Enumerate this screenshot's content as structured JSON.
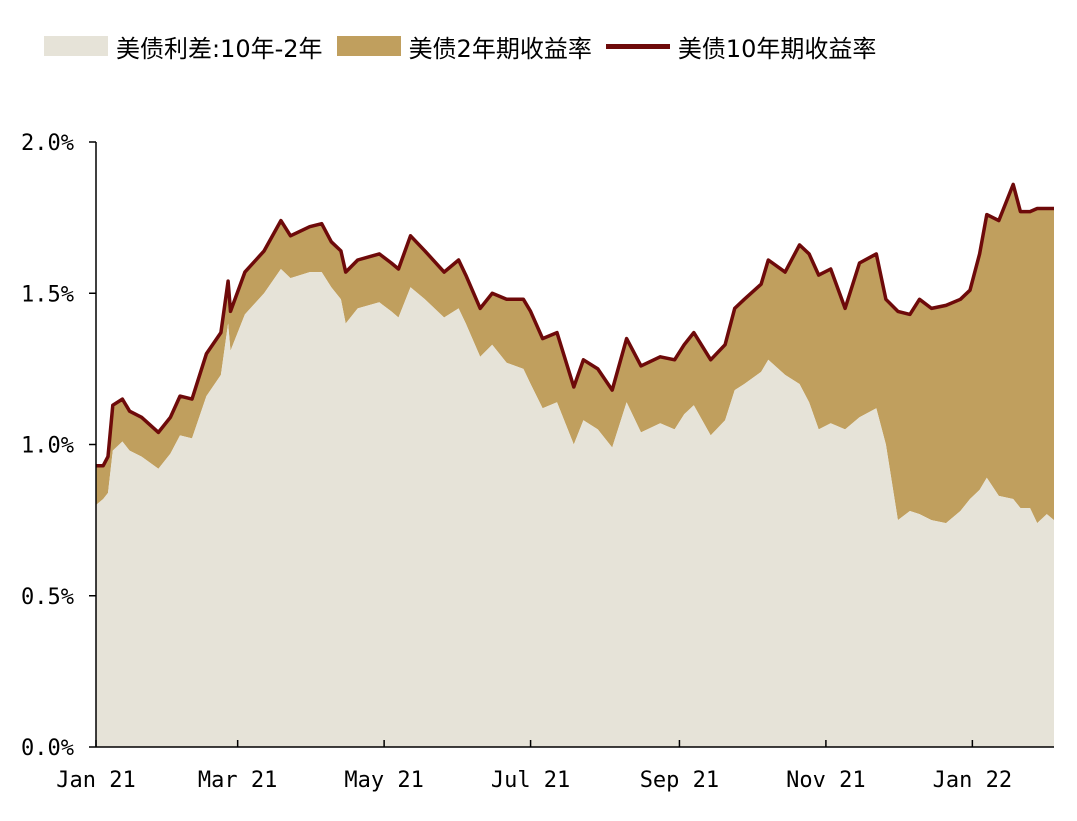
{
  "chart_data": {
    "type": "area",
    "legend": {
      "placement": "top-left",
      "items": [
        {
          "label": "美债利差:10年-2年",
          "kind": "area",
          "color": "#e6e3d8"
        },
        {
          "label": "美债2年期收益率",
          "kind": "area",
          "color": "#c09f5e"
        },
        {
          "label": "美债10年期收益率",
          "kind": "line",
          "color": "#6e0a0a"
        }
      ]
    },
    "y_axis": {
      "ticks": [
        {
          "value": 0.0,
          "label": "0.0%"
        },
        {
          "value": 0.5,
          "label": "0.5%"
        },
        {
          "value": 1.0,
          "label": "1.0%"
        },
        {
          "value": 1.5,
          "label": "1.5%"
        },
        {
          "value": 2.0,
          "label": "2.0%"
        }
      ],
      "range": [
        0,
        2.0
      ]
    },
    "x_axis": {
      "ticks": [
        {
          "value": "2021-01-01",
          "label": "Jan 21"
        },
        {
          "value": "2021-03-01",
          "label": "Mar 21"
        },
        {
          "value": "2021-05-01",
          "label": "May 21"
        },
        {
          "value": "2021-07-01",
          "label": "Jul 21"
        },
        {
          "value": "2021-09-01",
          "label": "Sep 21"
        },
        {
          "value": "2021-11-01",
          "label": "Nov 21"
        },
        {
          "value": "2022-01-01",
          "label": "Jan 22"
        }
      ],
      "range": [
        "2021-01-01",
        "2022-02-04"
      ]
    },
    "grid": false,
    "series": [
      {
        "name": "美债10年期收益率",
        "x": [
          "2021-01-01",
          "2021-01-04",
          "2021-01-06",
          "2021-01-08",
          "2021-01-12",
          "2021-01-15",
          "2021-01-20",
          "2021-01-27",
          "2021-02-01",
          "2021-02-05",
          "2021-02-10",
          "2021-02-16",
          "2021-02-22",
          "2021-02-25",
          "2021-02-26",
          "2021-03-04",
          "2021-03-12",
          "2021-03-19",
          "2021-03-23",
          "2021-03-31",
          "2021-04-05",
          "2021-04-09",
          "2021-04-13",
          "2021-04-15",
          "2021-04-20",
          "2021-04-29",
          "2021-05-04",
          "2021-05-07",
          "2021-05-12",
          "2021-05-18",
          "2021-05-26",
          "2021-06-01",
          "2021-06-04",
          "2021-06-10",
          "2021-06-15",
          "2021-06-21",
          "2021-06-28",
          "2021-07-01",
          "2021-07-06",
          "2021-07-12",
          "2021-07-19",
          "2021-07-23",
          "2021-07-29",
          "2021-08-04",
          "2021-08-10",
          "2021-08-16",
          "2021-08-24",
          "2021-08-30",
          "2021-09-03",
          "2021-09-07",
          "2021-09-14",
          "2021-09-20",
          "2021-09-24",
          "2021-09-28",
          "2021-10-05",
          "2021-10-08",
          "2021-10-15",
          "2021-10-21",
          "2021-10-25",
          "2021-10-29",
          "2021-11-03",
          "2021-11-09",
          "2021-11-15",
          "2021-11-22",
          "2021-11-26",
          "2021-12-01",
          "2021-12-06",
          "2021-12-10",
          "2021-12-15",
          "2021-12-21",
          "2021-12-27",
          "2021-12-31",
          "2022-01-04",
          "2022-01-07",
          "2022-01-12",
          "2022-01-18",
          "2022-01-21",
          "2022-01-25",
          "2022-01-28",
          "2022-02-01",
          "2022-02-04"
        ],
        "values": [
          0.93,
          0.93,
          0.96,
          1.13,
          1.15,
          1.11,
          1.09,
          1.04,
          1.09,
          1.16,
          1.15,
          1.3,
          1.37,
          1.54,
          1.44,
          1.57,
          1.64,
          1.74,
          1.69,
          1.72,
          1.73,
          1.67,
          1.64,
          1.57,
          1.61,
          1.63,
          1.6,
          1.58,
          1.69,
          1.64,
          1.57,
          1.61,
          1.56,
          1.45,
          1.5,
          1.48,
          1.48,
          1.44,
          1.35,
          1.37,
          1.19,
          1.28,
          1.25,
          1.18,
          1.35,
          1.26,
          1.29,
          1.28,
          1.33,
          1.37,
          1.28,
          1.33,
          1.45,
          1.48,
          1.53,
          1.61,
          1.57,
          1.66,
          1.63,
          1.56,
          1.58,
          1.45,
          1.6,
          1.63,
          1.48,
          1.44,
          1.43,
          1.48,
          1.45,
          1.46,
          1.48,
          1.51,
          1.63,
          1.76,
          1.74,
          1.86,
          1.77,
          1.77,
          1.78,
          1.78,
          1.78
        ]
      },
      {
        "name": "美债利差:10年-2年",
        "x": [
          "2021-01-01",
          "2021-01-04",
          "2021-01-06",
          "2021-01-08",
          "2021-01-12",
          "2021-01-15",
          "2021-01-20",
          "2021-01-27",
          "2021-02-01",
          "2021-02-05",
          "2021-02-10",
          "2021-02-16",
          "2021-02-22",
          "2021-02-25",
          "2021-02-26",
          "2021-03-04",
          "2021-03-12",
          "2021-03-19",
          "2021-03-23",
          "2021-03-31",
          "2021-04-05",
          "2021-04-09",
          "2021-04-13",
          "2021-04-15",
          "2021-04-20",
          "2021-04-29",
          "2021-05-04",
          "2021-05-07",
          "2021-05-12",
          "2021-05-18",
          "2021-05-26",
          "2021-06-01",
          "2021-06-04",
          "2021-06-10",
          "2021-06-15",
          "2021-06-21",
          "2021-06-28",
          "2021-07-01",
          "2021-07-06",
          "2021-07-12",
          "2021-07-19",
          "2021-07-23",
          "2021-07-29",
          "2021-08-04",
          "2021-08-10",
          "2021-08-16",
          "2021-08-24",
          "2021-08-30",
          "2021-09-03",
          "2021-09-07",
          "2021-09-14",
          "2021-09-20",
          "2021-09-24",
          "2021-09-28",
          "2021-10-05",
          "2021-10-08",
          "2021-10-15",
          "2021-10-21",
          "2021-10-25",
          "2021-10-29",
          "2021-11-03",
          "2021-11-09",
          "2021-11-15",
          "2021-11-22",
          "2021-11-26",
          "2021-12-01",
          "2021-12-06",
          "2021-12-10",
          "2021-12-15",
          "2021-12-21",
          "2021-12-27",
          "2021-12-31",
          "2022-01-04",
          "2022-01-07",
          "2022-01-12",
          "2022-01-18",
          "2022-01-21",
          "2022-01-25",
          "2022-01-28",
          "2022-02-01",
          "2022-02-04"
        ],
        "values": [
          0.8,
          0.82,
          0.84,
          0.98,
          1.01,
          0.98,
          0.96,
          0.92,
          0.97,
          1.03,
          1.02,
          1.16,
          1.23,
          1.4,
          1.31,
          1.43,
          1.5,
          1.58,
          1.55,
          1.57,
          1.57,
          1.52,
          1.48,
          1.4,
          1.45,
          1.47,
          1.44,
          1.42,
          1.52,
          1.48,
          1.42,
          1.45,
          1.4,
          1.29,
          1.33,
          1.27,
          1.25,
          1.2,
          1.12,
          1.14,
          1.0,
          1.08,
          1.05,
          0.99,
          1.14,
          1.04,
          1.07,
          1.05,
          1.1,
          1.13,
          1.03,
          1.08,
          1.18,
          1.2,
          1.24,
          1.28,
          1.23,
          1.2,
          1.14,
          1.05,
          1.07,
          1.05,
          1.09,
          1.12,
          1.0,
          0.75,
          0.78,
          0.77,
          0.75,
          0.74,
          0.78,
          0.82,
          0.85,
          0.89,
          0.83,
          0.82,
          0.79,
          0.79,
          0.74,
          0.77,
          0.75
        ]
      },
      {
        "name": "美债2年期收益率",
        "note_is_difference": true
      }
    ]
  }
}
